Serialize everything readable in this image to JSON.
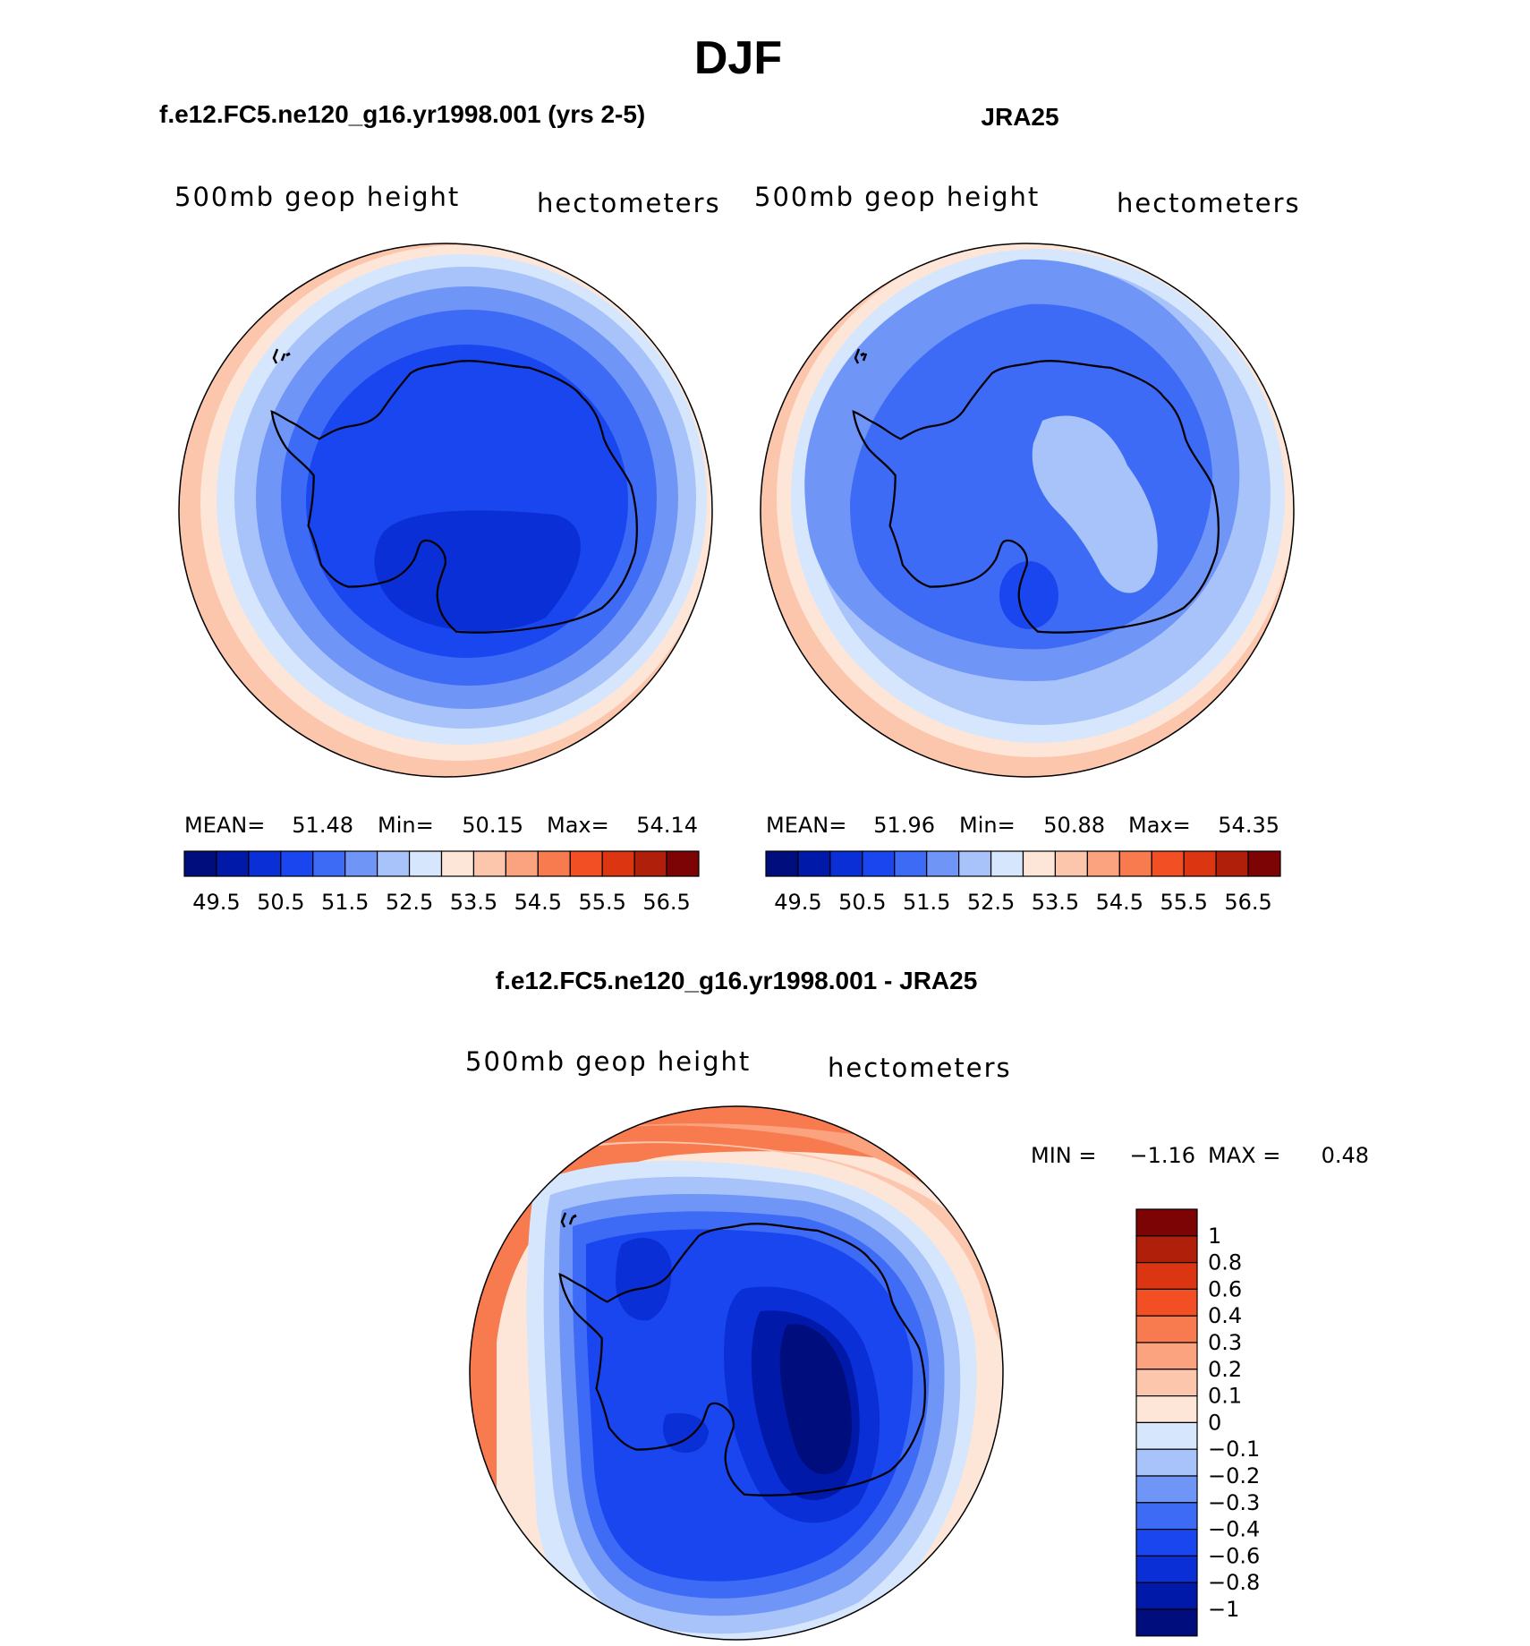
{
  "figure_title": "DJF",
  "panels": [
    {
      "title": "f.e12.FC5.ne120_g16.yr1998.001 (yrs 2-5)",
      "field_label": "500mb geop height",
      "units_label": "hectometers",
      "stats": {
        "mean_label": "MEAN=",
        "mean": "51.48",
        "min_label": "Min=",
        "min": "50.15",
        "max_label": "Max=",
        "max": "54.14"
      }
    },
    {
      "title": "JRA25",
      "field_label": "500mb geop height",
      "units_label": "hectometers",
      "stats": {
        "mean_label": "MEAN=",
        "mean": "51.96",
        "min_label": "Min=",
        "min": "50.88",
        "max_label": "Max=",
        "max": "54.35"
      }
    }
  ],
  "diff_panel": {
    "title": "f.e12.FC5.ne120_g16.yr1998.001 - JRA25",
    "field_label": "500mb geop height",
    "units_label": "hectometers",
    "minmax": {
      "min_label": "MIN =",
      "min": "−1.16",
      "max_label": "MAX =",
      "max": "0.48"
    }
  },
  "abs_colorbar": {
    "colors": [
      "#000e7d",
      "#0019a8",
      "#0a2fd6",
      "#1a46f0",
      "#3d6bf5",
      "#6f95f7",
      "#a8c2fa",
      "#d6e6fc",
      "#fde6d8",
      "#fcc6ad",
      "#fba37f",
      "#f87a4f",
      "#f25024",
      "#dc3512",
      "#b01f0a",
      "#7c0404"
    ],
    "labels": [
      "49.5",
      "50.5",
      "51.5",
      "52.5",
      "53.5",
      "54.5",
      "55.5",
      "56.5"
    ]
  },
  "diff_colorbar": {
    "colors": [
      "#000e7d",
      "#0019a8",
      "#0a2fd6",
      "#1a46f0",
      "#3d6bf5",
      "#6f95f7",
      "#a8c2fa",
      "#d6e6fc",
      "#fde6d8",
      "#fcc6ad",
      "#fba37f",
      "#f87a4f",
      "#f25024",
      "#dc3512",
      "#b01f0a",
      "#7c0404"
    ],
    "labels": [
      "−1",
      "−0.8",
      "−0.6",
      "−0.4",
      "−0.3",
      "−0.2",
      "−0.1",
      "0",
      "0.1",
      "0.2",
      "0.3",
      "0.4",
      "0.6",
      "0.8",
      "1"
    ]
  },
  "chart_data": [
    {
      "type": "map",
      "projection": "south polar stereographic",
      "title": "f.e12.FC5.ne120_g16.yr1998.001 (yrs 2-5)",
      "variable": "500mb geop height",
      "units": "hectometers",
      "mean": 51.48,
      "min": 50.15,
      "max": 54.14,
      "contour_levels": [
        49.5,
        50.5,
        51.5,
        52.5,
        53.5,
        54.5,
        55.5,
        56.5
      ]
    },
    {
      "type": "map",
      "projection": "south polar stereographic",
      "title": "JRA25",
      "variable": "500mb geop height",
      "units": "hectometers",
      "mean": 51.96,
      "min": 50.88,
      "max": 54.35,
      "contour_levels": [
        49.5,
        50.5,
        51.5,
        52.5,
        53.5,
        54.5,
        55.5,
        56.5
      ]
    },
    {
      "type": "map",
      "projection": "south polar stereographic",
      "title": "f.e12.FC5.ne120_g16.yr1998.001 - JRA25",
      "variable": "500mb geop height",
      "units": "hectometers",
      "min": -1.16,
      "max": 0.48,
      "contour_levels": [
        -1,
        -0.8,
        -0.6,
        -0.4,
        -0.3,
        -0.2,
        -0.1,
        0,
        0.1,
        0.2,
        0.3,
        0.4,
        0.6,
        0.8,
        1
      ]
    }
  ]
}
